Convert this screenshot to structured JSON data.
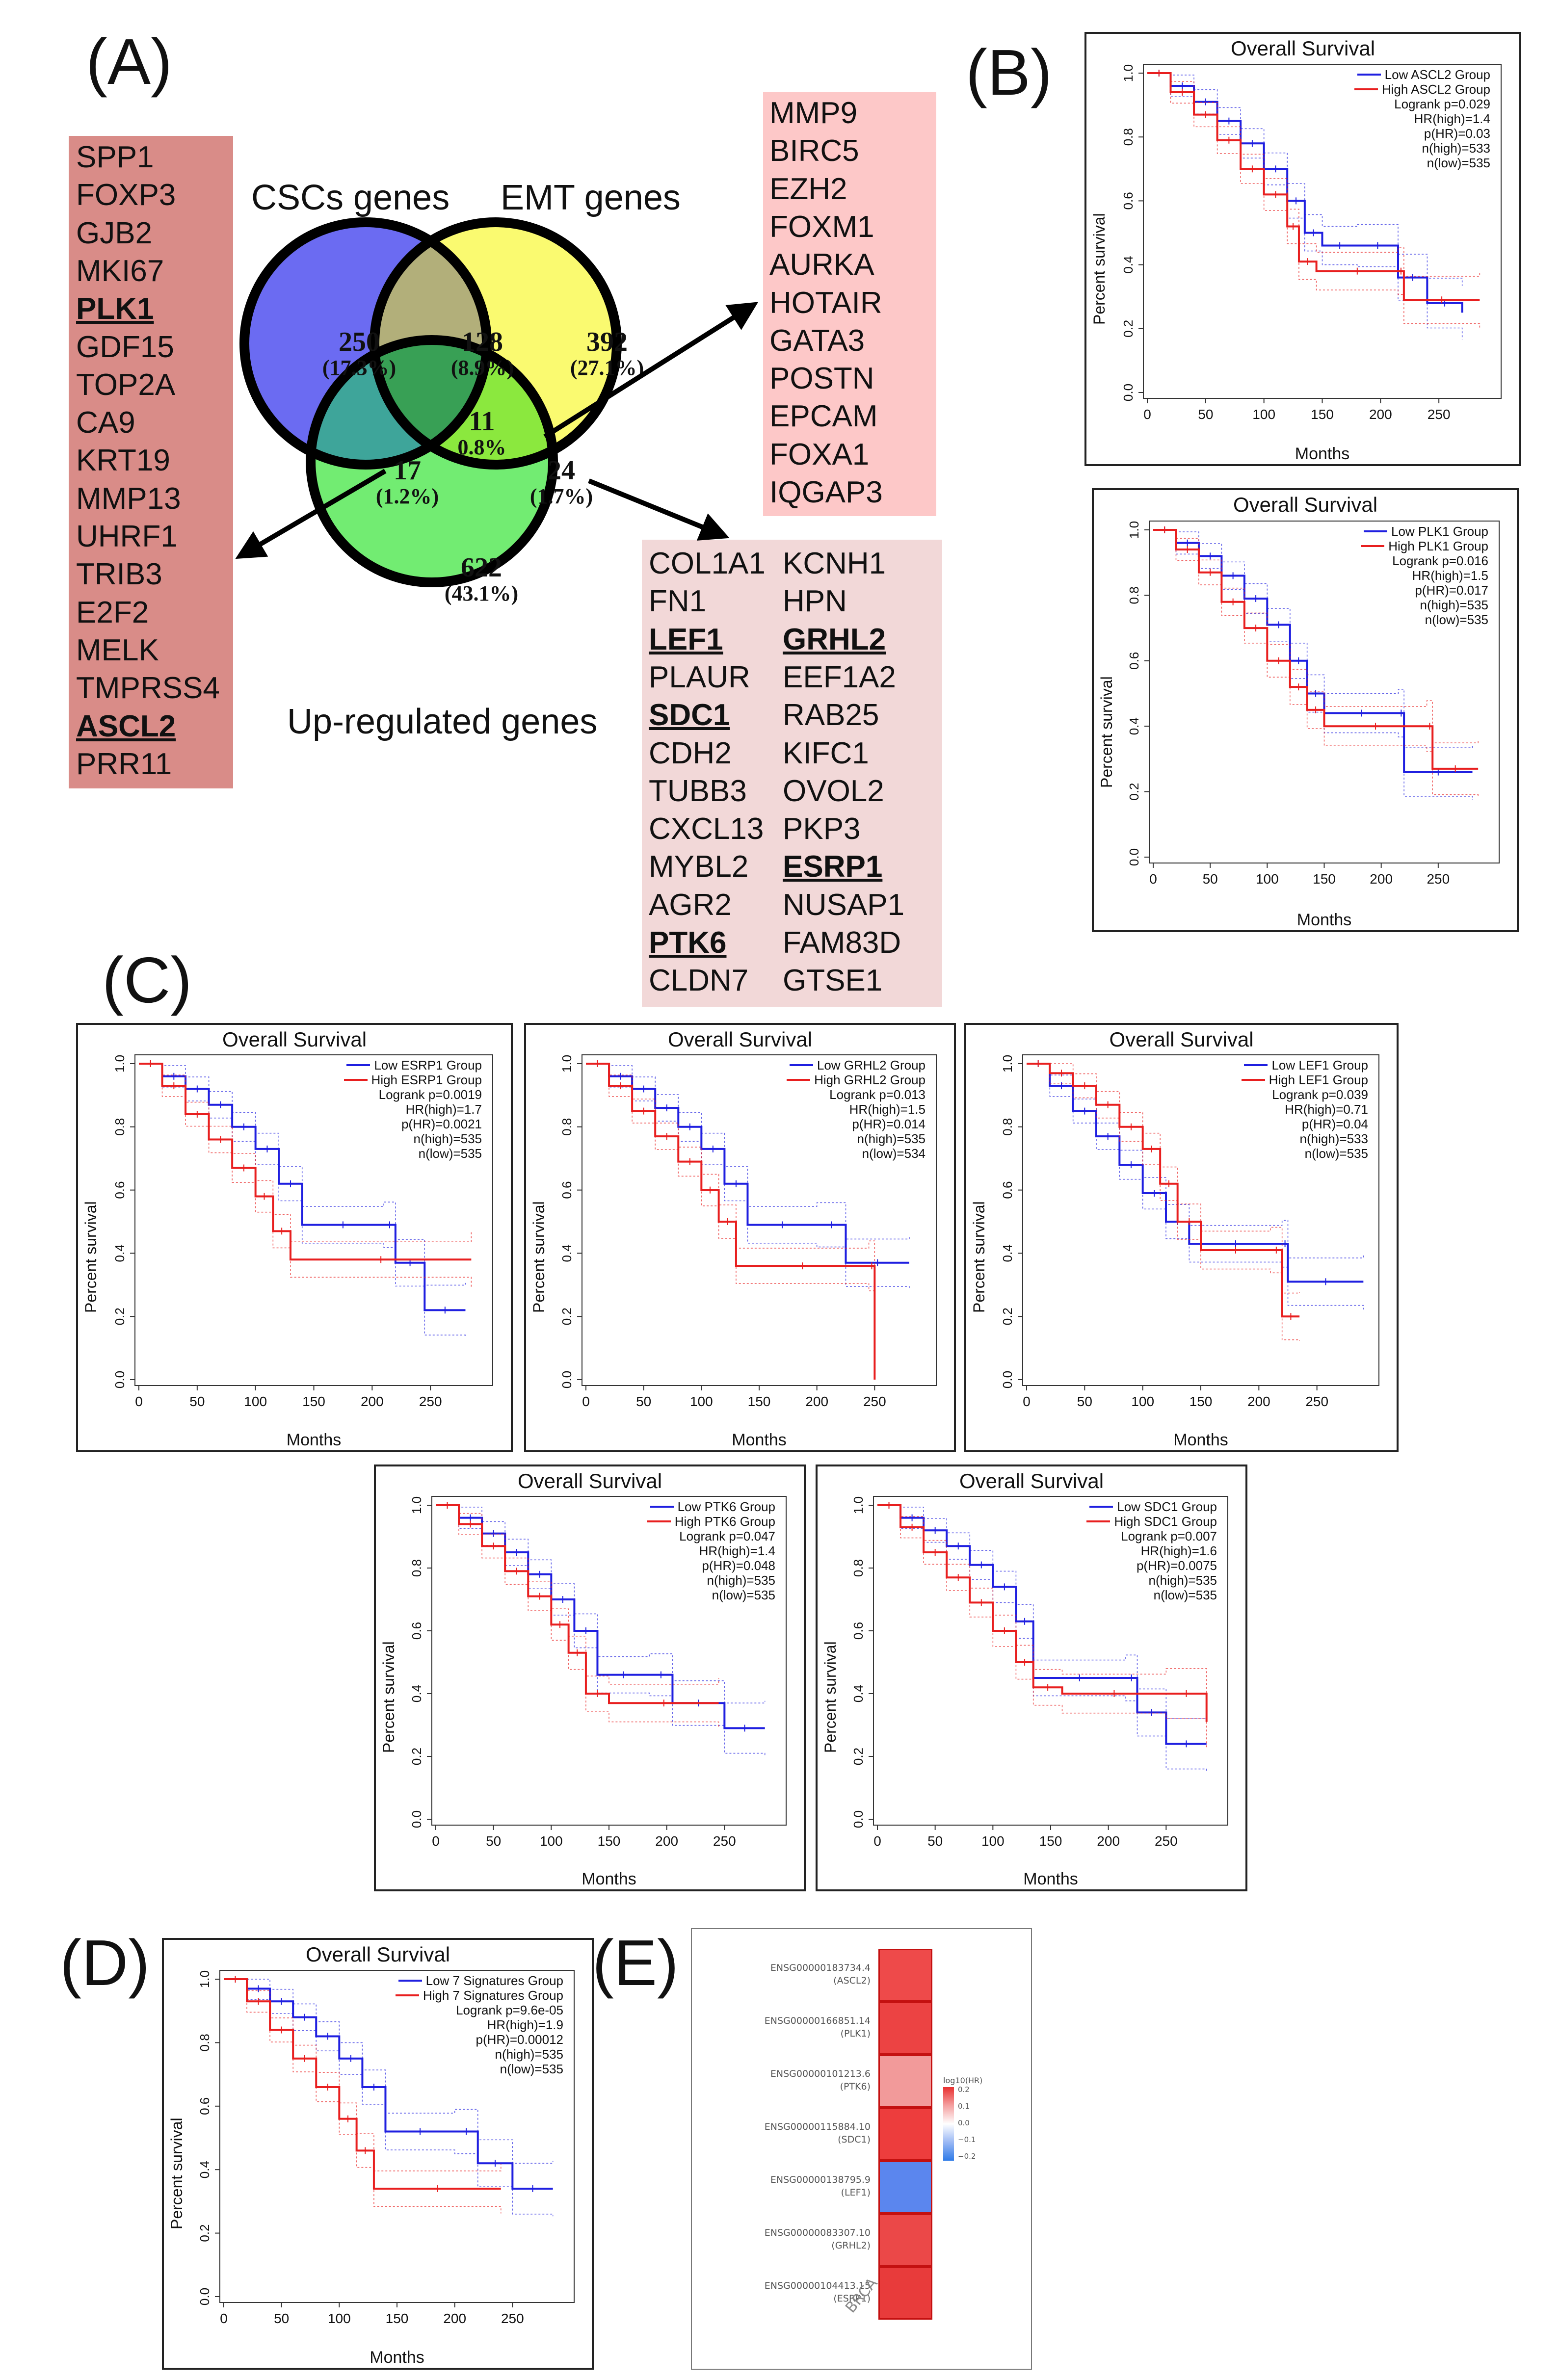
{
  "panels": {
    "A": "(A)",
    "B": "(B)",
    "C": "(C)",
    "D": "(D)",
    "E": "(E)"
  },
  "venn": {
    "set_labels": [
      "CSCs genes",
      "EMT genes",
      "Up-regulated genes"
    ],
    "regions": [
      {
        "id": "cscs_only",
        "count": "250",
        "pct": "(17.3%)"
      },
      {
        "id": "cscs_emt",
        "count": "128",
        "pct": "(8.9%)"
      },
      {
        "id": "emt_only",
        "count": "392",
        "pct": "(27.1%)"
      },
      {
        "id": "all_three",
        "count": "11",
        "pct": "0.8%"
      },
      {
        "id": "cscs_up",
        "count": "17",
        "pct": "(1.2%)"
      },
      {
        "id": "emt_up",
        "count": "24",
        "pct": "(1.7%)"
      },
      {
        "id": "up_only",
        "count": "622",
        "pct": "(43.1%)"
      }
    ],
    "colors": {
      "cscs": "#6b6bf2",
      "emt": "#fafa70",
      "up": "#72ec72",
      "cscs_emt": "#b2af7a",
      "cscs_up": "#3ea59a",
      "emt_up": "#8be83e",
      "center": "#38a055"
    }
  },
  "gene_lists": {
    "cscs_up": [
      "SPP1",
      "FOXP3",
      "GJB2",
      "MKI67",
      "PLK1",
      "GDF15",
      "TOP2A",
      "CA9",
      "KRT19",
      "MMP13",
      "UHRF1",
      "TRIB3",
      "E2F2",
      "MELK",
      "TMPRSS4",
      "ASCL2",
      "PRR11"
    ],
    "all_three": [
      "MMP9",
      "BIRC5",
      "EZH2",
      "FOXM1",
      "AURKA",
      "HOTAIR",
      "GATA3",
      "POSTN",
      "EPCAM",
      "FOXA1",
      "IQGAP3"
    ],
    "emt_up_col1": [
      "COL1A1",
      "FN1",
      "LEF1",
      "PLAUR",
      "SDC1",
      "CDH2",
      "TUBB3",
      "CXCL13",
      "MYBL2",
      "AGR2",
      "PTK6",
      "CLDN7"
    ],
    "emt_up_col2": [
      "KCNH1",
      "HPN",
      "GRHL2",
      "EEF1A2",
      "RAB25",
      "KIFC1",
      "OVOL2",
      "PKP3",
      "ESRP1",
      "NUSAP1",
      "FAM83D",
      "GTSE1"
    ],
    "highlighted": [
      "PLK1",
      "ASCL2",
      "LEF1",
      "SDC1",
      "PTK6",
      "GRHL2",
      "ESRP1"
    ],
    "box_colors": {
      "cscs_up": "#d98c88",
      "all_three": "#fdc8c8",
      "emt_up": "#f2d8d8"
    }
  },
  "km_common": {
    "title": "Overall Survival",
    "ylabel": "Percent survival",
    "xlabel": "Months",
    "xticks": [
      "0",
      "50",
      "100",
      "150",
      "200",
      "250"
    ],
    "yticks": [
      "0.0",
      "0.2",
      "0.4",
      "0.6",
      "0.8",
      "1.0"
    ],
    "low_color": "#1f1fe0",
    "high_color": "#e81f1f"
  },
  "km_plots": [
    {
      "id": "ascl2",
      "legend": [
        "Low ASCL2 Group",
        "High ASCL2 Group"
      ],
      "stats": [
        "Logrank p=0.029",
        "HR(high)=1.4",
        "p(HR)=0.03",
        "n(high)=533",
        "n(low)=535"
      ],
      "low": [
        [
          0,
          1.0
        ],
        [
          20,
          0.96
        ],
        [
          40,
          0.91
        ],
        [
          60,
          0.85
        ],
        [
          80,
          0.78
        ],
        [
          100,
          0.7
        ],
        [
          120,
          0.6
        ],
        [
          135,
          0.5
        ],
        [
          150,
          0.46
        ],
        [
          180,
          0.46
        ],
        [
          215,
          0.36
        ],
        [
          240,
          0.28
        ],
        [
          270,
          0.25
        ]
      ],
      "high": [
        [
          0,
          1.0
        ],
        [
          20,
          0.94
        ],
        [
          40,
          0.87
        ],
        [
          60,
          0.79
        ],
        [
          80,
          0.7
        ],
        [
          100,
          0.62
        ],
        [
          120,
          0.52
        ],
        [
          130,
          0.41
        ],
        [
          145,
          0.38
        ],
        [
          215,
          0.38
        ],
        [
          220,
          0.29
        ],
        [
          285,
          0.29
        ]
      ]
    },
    {
      "id": "plk1",
      "legend": [
        "Low PLK1 Group",
        "High PLK1 Group"
      ],
      "stats": [
        "Logrank p=0.016",
        "HR(high)=1.5",
        "p(HR)=0.017",
        "n(high)=535",
        "n(low)=535"
      ],
      "low": [
        [
          0,
          1.0
        ],
        [
          20,
          0.96
        ],
        [
          40,
          0.92
        ],
        [
          60,
          0.86
        ],
        [
          80,
          0.79
        ],
        [
          100,
          0.71
        ],
        [
          120,
          0.6
        ],
        [
          135,
          0.5
        ],
        [
          150,
          0.44
        ],
        [
          215,
          0.44
        ],
        [
          220,
          0.26
        ],
        [
          280,
          0.26
        ]
      ],
      "high": [
        [
          0,
          1.0
        ],
        [
          20,
          0.94
        ],
        [
          40,
          0.87
        ],
        [
          60,
          0.78
        ],
        [
          80,
          0.7
        ],
        [
          100,
          0.6
        ],
        [
          120,
          0.52
        ],
        [
          135,
          0.45
        ],
        [
          150,
          0.4
        ],
        [
          240,
          0.4
        ],
        [
          245,
          0.27
        ],
        [
          285,
          0.27
        ]
      ]
    },
    {
      "id": "esrp1",
      "legend": [
        "Low ESRP1 Group",
        "High ESRP1 Group"
      ],
      "stats": [
        "Logrank p=0.0019",
        "HR(high)=1.7",
        "p(HR)=0.0021",
        "n(high)=535",
        "n(low)=535"
      ],
      "low": [
        [
          0,
          1.0
        ],
        [
          20,
          0.96
        ],
        [
          40,
          0.92
        ],
        [
          60,
          0.87
        ],
        [
          80,
          0.8
        ],
        [
          100,
          0.73
        ],
        [
          120,
          0.62
        ],
        [
          140,
          0.49
        ],
        [
          210,
          0.49
        ],
        [
          220,
          0.37
        ],
        [
          245,
          0.22
        ],
        [
          280,
          0.22
        ]
      ],
      "high": [
        [
          0,
          1.0
        ],
        [
          20,
          0.93
        ],
        [
          40,
          0.84
        ],
        [
          60,
          0.76
        ],
        [
          80,
          0.67
        ],
        [
          100,
          0.58
        ],
        [
          115,
          0.47
        ],
        [
          130,
          0.38
        ],
        [
          285,
          0.38
        ]
      ]
    },
    {
      "id": "grhl2",
      "legend": [
        "Low GRHL2 Group",
        "High GRHL2 Group"
      ],
      "stats": [
        "Logrank p=0.013",
        "HR(high)=1.5",
        "p(HR)=0.014",
        "n(high)=535",
        "n(low)=534"
      ],
      "low": [
        [
          0,
          1.0
        ],
        [
          20,
          0.96
        ],
        [
          40,
          0.92
        ],
        [
          60,
          0.86
        ],
        [
          80,
          0.8
        ],
        [
          100,
          0.73
        ],
        [
          120,
          0.62
        ],
        [
          140,
          0.49
        ],
        [
          200,
          0.49
        ],
        [
          225,
          0.37
        ],
        [
          280,
          0.37
        ]
      ],
      "high": [
        [
          0,
          1.0
        ],
        [
          20,
          0.93
        ],
        [
          40,
          0.85
        ],
        [
          60,
          0.77
        ],
        [
          80,
          0.69
        ],
        [
          100,
          0.6
        ],
        [
          115,
          0.5
        ],
        [
          130,
          0.36
        ],
        [
          245,
          0.36
        ],
        [
          250,
          0.0
        ]
      ]
    },
    {
      "id": "lef1",
      "legend": [
        "Low LEF1 Group",
        "High LEF1 Group"
      ],
      "stats": [
        "Logrank p=0.039",
        "HR(high)=0.71",
        "p(HR)=0.04",
        "n(high)=533",
        "n(low)=535"
      ],
      "low": [
        [
          0,
          1.0
        ],
        [
          20,
          0.93
        ],
        [
          40,
          0.85
        ],
        [
          60,
          0.77
        ],
        [
          80,
          0.68
        ],
        [
          100,
          0.59
        ],
        [
          120,
          0.5
        ],
        [
          140,
          0.43
        ],
        [
          220,
          0.43
        ],
        [
          225,
          0.31
        ],
        [
          290,
          0.31
        ]
      ],
      "high": [
        [
          0,
          1.0
        ],
        [
          20,
          0.97
        ],
        [
          40,
          0.93
        ],
        [
          60,
          0.87
        ],
        [
          80,
          0.8
        ],
        [
          100,
          0.73
        ],
        [
          115,
          0.62
        ],
        [
          130,
          0.5
        ],
        [
          150,
          0.41
        ],
        [
          210,
          0.41
        ],
        [
          220,
          0.2
        ],
        [
          235,
          0.2
        ]
      ]
    },
    {
      "id": "ptk6",
      "legend": [
        "Low PTK6 Group",
        "High PTK6 Group"
      ],
      "stats": [
        "Logrank p=0.047",
        "HR(high)=1.4",
        "p(HR)=0.048",
        "n(high)=535",
        "n(low)=535"
      ],
      "low": [
        [
          0,
          1.0
        ],
        [
          20,
          0.96
        ],
        [
          40,
          0.91
        ],
        [
          60,
          0.85
        ],
        [
          80,
          0.78
        ],
        [
          100,
          0.7
        ],
        [
          120,
          0.6
        ],
        [
          140,
          0.46
        ],
        [
          185,
          0.46
        ],
        [
          205,
          0.37
        ],
        [
          250,
          0.29
        ],
        [
          285,
          0.29
        ]
      ],
      "high": [
        [
          0,
          1.0
        ],
        [
          20,
          0.94
        ],
        [
          40,
          0.87
        ],
        [
          60,
          0.79
        ],
        [
          80,
          0.71
        ],
        [
          100,
          0.62
        ],
        [
          115,
          0.53
        ],
        [
          130,
          0.4
        ],
        [
          150,
          0.37
        ],
        [
          245,
          0.37
        ]
      ]
    },
    {
      "id": "sdc1",
      "legend": [
        "Low SDC1 Group",
        "High SDC1 Group"
      ],
      "stats": [
        "Logrank p=0.007",
        "HR(high)=1.6",
        "p(HR)=0.0075",
        "n(high)=535",
        "n(low)=535"
      ],
      "low": [
        [
          0,
          1.0
        ],
        [
          20,
          0.96
        ],
        [
          40,
          0.92
        ],
        [
          60,
          0.87
        ],
        [
          80,
          0.81
        ],
        [
          100,
          0.74
        ],
        [
          120,
          0.63
        ],
        [
          135,
          0.45
        ],
        [
          215,
          0.45
        ],
        [
          225,
          0.34
        ],
        [
          250,
          0.24
        ],
        [
          285,
          0.24
        ]
      ],
      "high": [
        [
          0,
          1.0
        ],
        [
          20,
          0.93
        ],
        [
          40,
          0.85
        ],
        [
          60,
          0.77
        ],
        [
          80,
          0.69
        ],
        [
          100,
          0.6
        ],
        [
          120,
          0.5
        ],
        [
          135,
          0.42
        ],
        [
          160,
          0.4
        ],
        [
          250,
          0.4
        ],
        [
          285,
          0.31
        ]
      ]
    },
    {
      "id": "signature",
      "legend": [
        "Low 7 Signatures Group",
        "High 7 Signatures Group"
      ],
      "stats": [
        "Logrank p=9.6e-05",
        "HR(high)=1.9",
        "p(HR)=0.00012",
        "n(high)=535",
        "n(low)=535"
      ],
      "low": [
        [
          0,
          1.0
        ],
        [
          20,
          0.97
        ],
        [
          40,
          0.93
        ],
        [
          60,
          0.88
        ],
        [
          80,
          0.82
        ],
        [
          100,
          0.75
        ],
        [
          120,
          0.66
        ],
        [
          140,
          0.52
        ],
        [
          200,
          0.52
        ],
        [
          220,
          0.42
        ],
        [
          250,
          0.34
        ],
        [
          285,
          0.34
        ]
      ],
      "high": [
        [
          0,
          1.0
        ],
        [
          20,
          0.93
        ],
        [
          40,
          0.84
        ],
        [
          60,
          0.75
        ],
        [
          80,
          0.66
        ],
        [
          100,
          0.56
        ],
        [
          115,
          0.46
        ],
        [
          130,
          0.34
        ],
        [
          240,
          0.34
        ]
      ]
    }
  ],
  "heatmap": {
    "genes": [
      {
        "id": "ENSG00000183734.4",
        "sym": "(ASCL2)",
        "value": 0.15,
        "color": "#ee4a4a"
      },
      {
        "id": "ENSG00000166851.14",
        "sym": "(PLK1)",
        "value": 0.17,
        "color": "#ec4343"
      },
      {
        "id": "ENSG00000101213.6",
        "sym": "(PTK6)",
        "value": 0.14,
        "color": "#f29a9a"
      },
      {
        "id": "ENSG00000115884.10",
        "sym": "(SDC1)",
        "value": 0.2,
        "color": "#ed3d3d"
      },
      {
        "id": "ENSG00000138795.9",
        "sym": "(LEF1)",
        "value": -0.15,
        "color": "#5b86ee"
      },
      {
        "id": "ENSG00000083307.10",
        "sym": "(GRHL2)",
        "value": 0.17,
        "color": "#eb4848"
      },
      {
        "id": "ENSG00000104413.15",
        "sym": "(ESRP1)",
        "value": 0.22,
        "color": "#e83b3b"
      }
    ],
    "column_label": "BRCA",
    "scale_title": "log10(HR)",
    "scale_ticks": [
      "0.2",
      "0.1",
      "0.0",
      "−0.1",
      "−0.2"
    ]
  }
}
